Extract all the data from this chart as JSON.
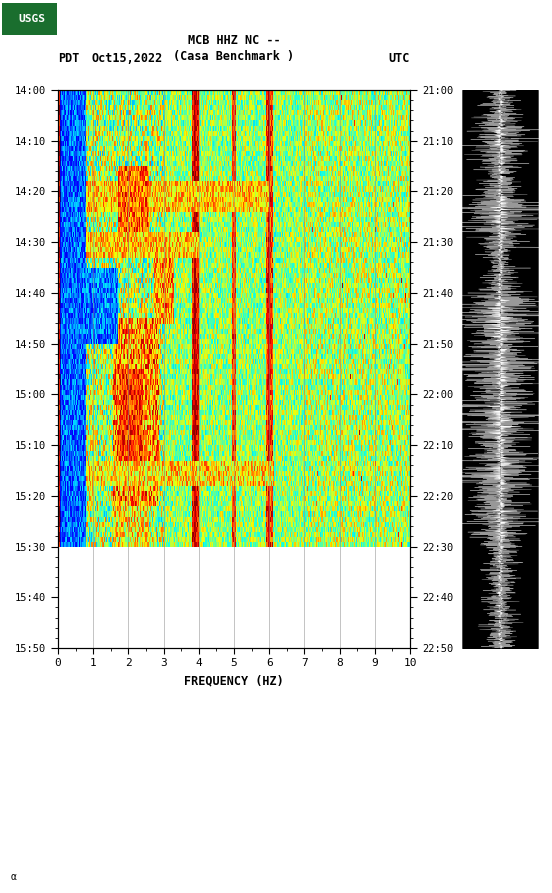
{
  "title_line1": "MCB HHZ NC --",
  "title_line2": "(Casa Benchmark )",
  "label_left": "PDT",
  "label_date": "Oct15,2022",
  "label_right": "UTC",
  "xlabel": "FREQUENCY (HZ)",
  "freq_ticks": [
    0,
    1,
    2,
    3,
    4,
    5,
    6,
    7,
    8,
    9,
    10
  ],
  "time_ticks_pdt": [
    "14:00",
    "14:10",
    "14:20",
    "14:30",
    "14:40",
    "14:50",
    "15:00",
    "15:10",
    "15:20",
    "15:30",
    "15:40",
    "15:50"
  ],
  "time_ticks_utc": [
    "21:00",
    "21:10",
    "21:20",
    "21:30",
    "21:40",
    "21:50",
    "22:00",
    "22:10",
    "22:20",
    "22:30",
    "22:40",
    "22:50"
  ],
  "bg_color": "#ffffff",
  "usgs_green": "#1a6e2e",
  "colormap": "jet",
  "fig_width": 5.52,
  "fig_height": 8.93,
  "active_minutes": 90,
  "total_minutes": 110,
  "seed": 42
}
